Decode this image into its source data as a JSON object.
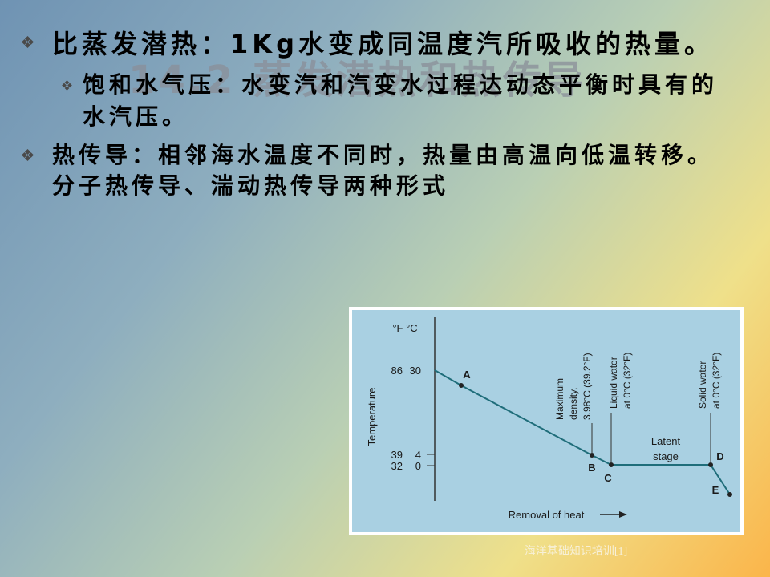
{
  "slide": {
    "title": "14.2 蒸发潜热和热传导",
    "bullets": [
      {
        "text": "比蒸发潜热：1Kg水变成同温度汽所吸收的热量。",
        "sub": [
          "饱和水气压：水变汽和汽变水过程达动态平衡时具有的水汽压。"
        ]
      },
      {
        "text": "热传导：相邻海水温度不同时，热量由高温向低温转移。分子热传导、湍动热传导两种形式"
      }
    ],
    "figure": {
      "units": "°F °C",
      "y_axis_label": "Temperature",
      "ticks": [
        {
          "f": "86",
          "c": "30"
        },
        {
          "f": "39",
          "c": "4"
        },
        {
          "f": "32",
          "c": "0"
        }
      ],
      "point_labels": [
        "A",
        "B",
        "C",
        "D",
        "E"
      ],
      "maximum_density": [
        "Maximum",
        "density,",
        "3.98°C (39.2°F)"
      ],
      "liquid_water": [
        "Liquid water",
        "at 0°C (32°F)"
      ],
      "solid_water": [
        "Solid water",
        "at 0°C (32°F)"
      ],
      "latent_stage": [
        "Latent",
        "stage"
      ],
      "x_axis_label": "Removal of heat"
    },
    "footer": "海洋基础知识培训[1]"
  }
}
